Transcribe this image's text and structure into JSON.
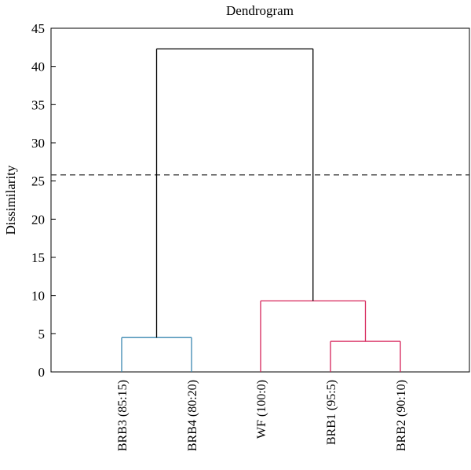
{
  "chart_data": {
    "type": "dendrogram",
    "title": "Dendrogram",
    "ylabel": "Dissimilarity",
    "xlabel": "",
    "ylim": [
      0,
      45
    ],
    "yticks": [
      0,
      5,
      10,
      15,
      20,
      25,
      30,
      35,
      40,
      45
    ],
    "leaves": [
      "BRB3 (85:15)",
      "BRB4 (80:20)",
      "WF (100:0)",
      "BRB1 (95:5)",
      "BRB2 (90:10)"
    ],
    "merges": [
      {
        "left": "BRB1 (95:5)",
        "right": "BRB2 (90:10)",
        "height": 4.0,
        "color": "#d6245a"
      },
      {
        "left": "BRB3 (85:15)",
        "right": "BRB4 (80:20)",
        "height": 4.5,
        "color": "#3a87b0"
      },
      {
        "left": "WF (100:0)",
        "right": "cluster(BRB1,BRB2)",
        "height": 9.3,
        "color": "#d6245a"
      },
      {
        "left": "cluster(BRB3,BRB4)",
        "right": "cluster(WF,BRB1,BRB2)",
        "height": 42.3,
        "color": "#000000"
      }
    ],
    "cutoff_line": {
      "value": 25.8,
      "style": "dashed"
    },
    "grid": false
  }
}
